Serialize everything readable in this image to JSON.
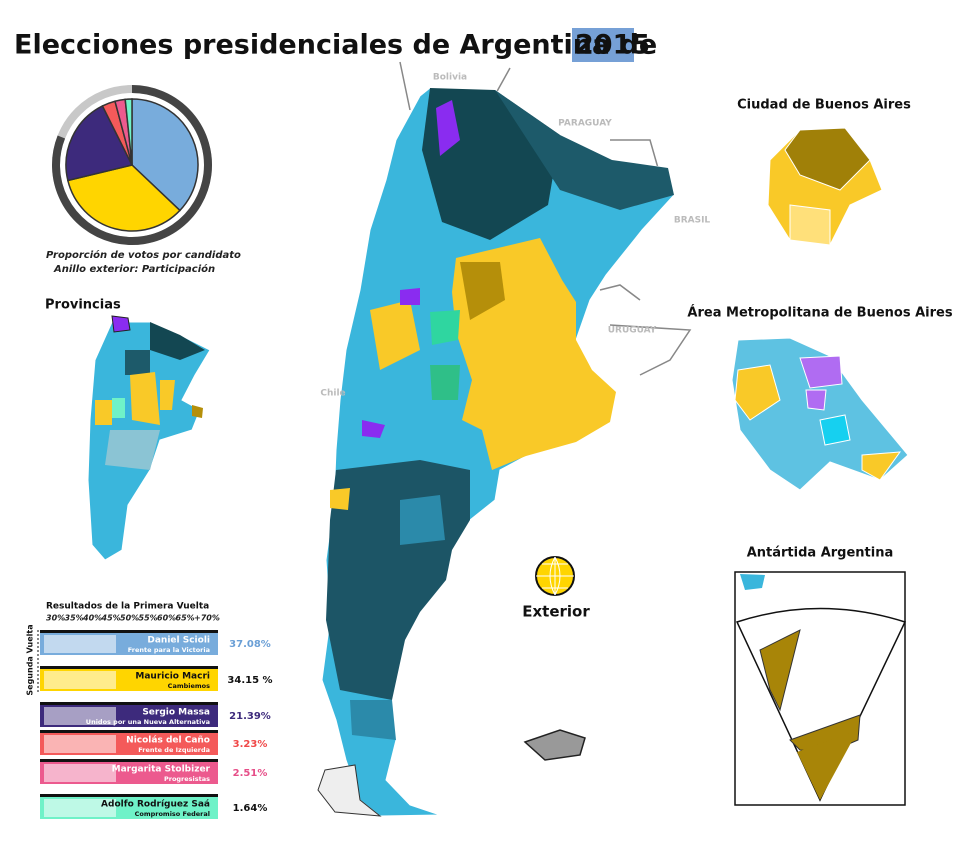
{
  "title_main": "Elecciones presidenciales de Argentina de",
  "title_year": "2015",
  "pie": {
    "participation": 81,
    "caption": "Proporción de votos por candidato",
    "caption2": "Anillo exterior: Participación"
  },
  "map_labels": {
    "bolivia": "Bolivia",
    "paraguay": "PARAGUAY",
    "brasil": "BRASIL",
    "uruguay": "URUGUAY",
    "chile": "Chile"
  },
  "insets": {
    "provincias": "Provincias",
    "caba": "Ciudad de Buenos Aires",
    "amba": "Área Metropolitana de Buenos Aires",
    "antartida": "Antártida Argentina",
    "exterior": "Exterior"
  },
  "results": {
    "heading": "Resultados de la Primera Vuelta",
    "scale": [
      "30%",
      "35%",
      "40%",
      "45%",
      "50%",
      "55%",
      "60%",
      "65%",
      "+70%"
    ],
    "runoff": "Segunda Vuelta",
    "candidates": [
      {
        "name": "Daniel Scioli",
        "party": "Frente para la Victoria",
        "value": 37.08,
        "value_label": "37.08%",
        "color": "#78acdc",
        "text_color": "#6a9fd6"
      },
      {
        "name": "Mauricio Macri",
        "party": "Cambiemos",
        "value": 34.15,
        "value_label": "34.15 %",
        "color": "#ffd500",
        "text_color": "#111111"
      },
      {
        "name": "Sergio Massa",
        "party": "Unidos por una Nueva Alternativa",
        "value": 21.39,
        "value_label": "21.39%",
        "color": "#3d2a7c",
        "text_color": "#3d2a7c"
      },
      {
        "name": "Nicolás del Caño",
        "party": "Frente de Izquierda",
        "value": 3.23,
        "value_label": "3.23%",
        "color": "#f45a5a",
        "text_color": "#f04848"
      },
      {
        "name": "Margarita Stolbizer",
        "party": "Progresistas",
        "value": 2.51,
        "value_label": "2.51%",
        "color": "#ec5a8e",
        "text_color": "#e64e88"
      },
      {
        "name": "Adolfo Rodríguez Saá",
        "party": "Compromiso Federal",
        "value": 1.64,
        "value_label": "1.64%",
        "color": "#6ff2c8",
        "text_color": "#111111"
      }
    ]
  }
}
